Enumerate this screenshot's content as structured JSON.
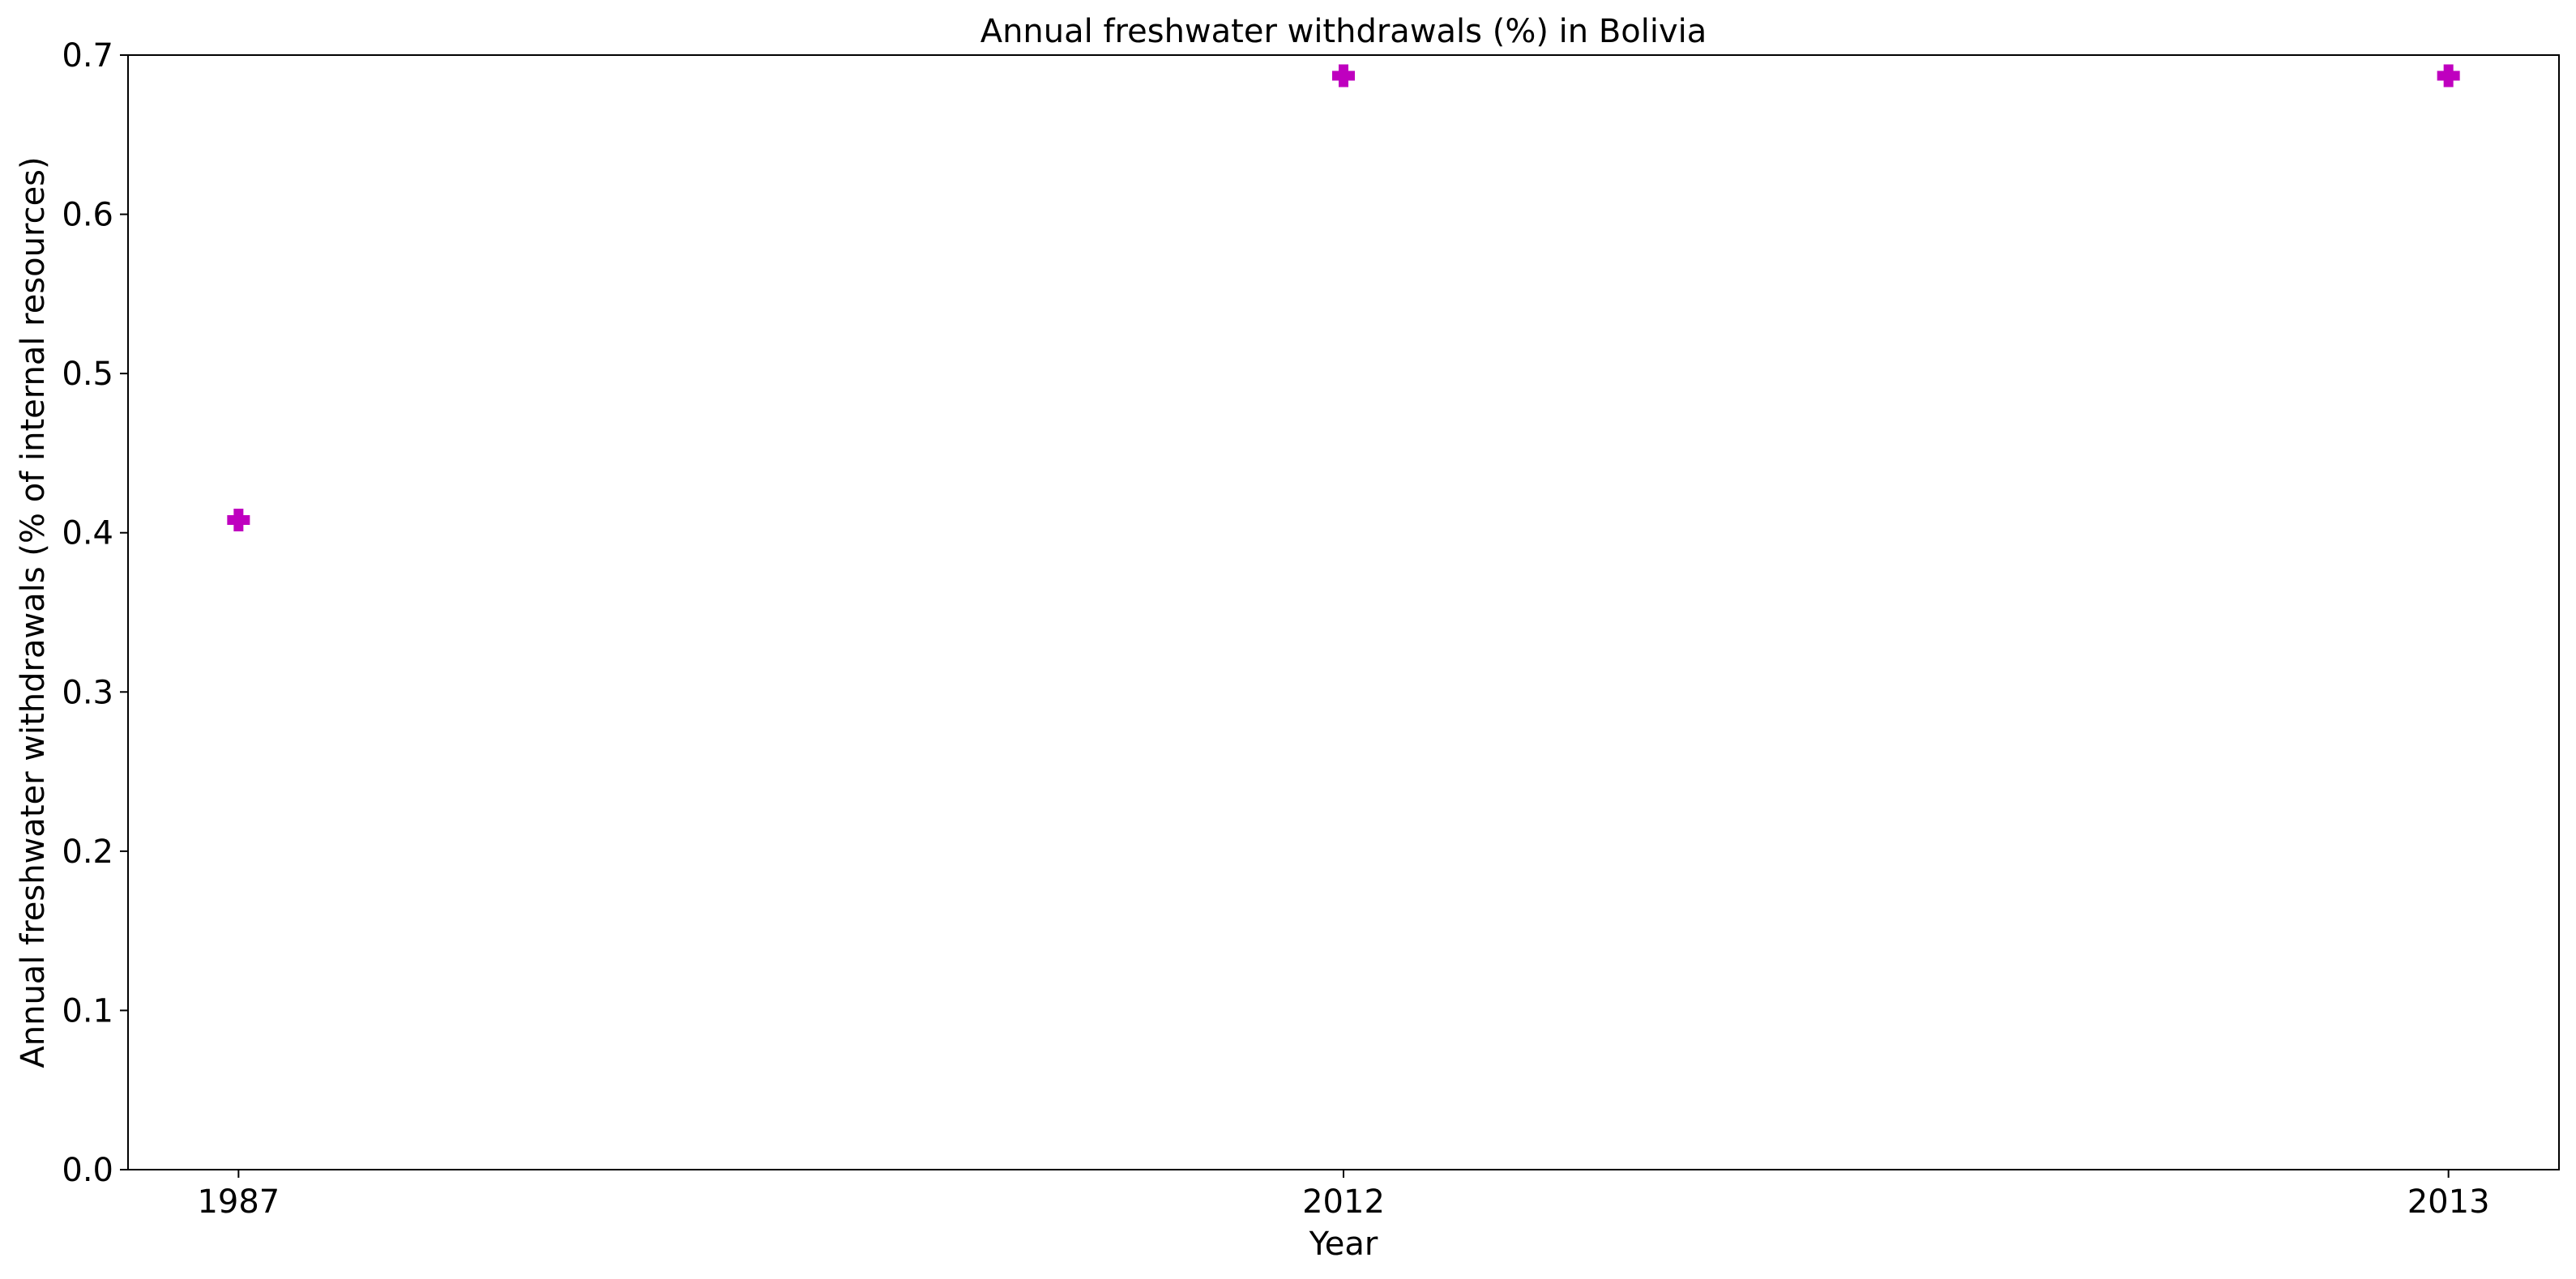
{
  "chart_data": {
    "type": "scatter",
    "title": "Annual freshwater withdrawals (%) in Bolivia",
    "xlabel": "Year",
    "ylabel": "Annual freshwater withdrawals (% of internal resources)",
    "x_axis_type": "category",
    "categories": [
      "1987",
      "2012",
      "2013"
    ],
    "values": [
      0.408,
      0.687,
      0.687
    ],
    "ylim": [
      0.0,
      0.7
    ],
    "yticks": [
      "0.0",
      "0.1",
      "0.2",
      "0.3",
      "0.4",
      "0.5",
      "0.6",
      "0.7"
    ],
    "marker": "plus-filled",
    "marker_color": "#bf00bf",
    "grid": false,
    "legend": "none"
  }
}
